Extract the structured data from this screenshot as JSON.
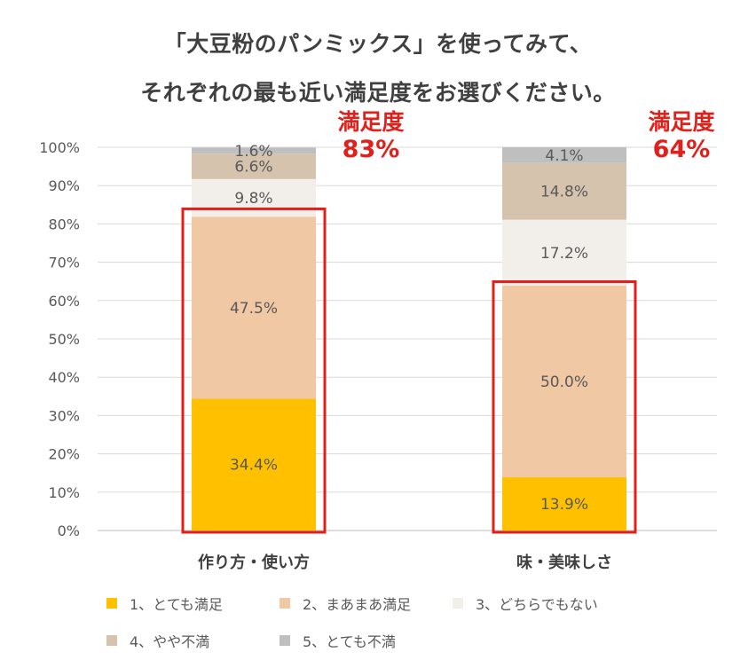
{
  "title_line1": "「大豆粉のパンミックス」を使ってみて、",
  "title_line2": "それぞれの最も近い満足度をお選びください。",
  "satisfaction": [
    {
      "label": "満足度",
      "value": "83%"
    },
    {
      "label": "満足度",
      "value": "64%"
    }
  ],
  "colors": {
    "highlight": "#e0201b",
    "grid": "#d9d9d9"
  },
  "chart_data": {
    "type": "bar",
    "stacked": true,
    "title": "「大豆粉のパンミックス」を使ってみて、それぞれの最も近い満足度をお選びください。",
    "categories": [
      "作り方・使い方",
      "味・美味しさ"
    ],
    "ylim": [
      0,
      100
    ],
    "yticks": [
      "0%",
      "10%",
      "20%",
      "30%",
      "40%",
      "50%",
      "60%",
      "70%",
      "80%",
      "90%",
      "100%"
    ],
    "series": [
      {
        "name": "1、とても満足",
        "color": "#ffc000",
        "values": [
          34.4,
          13.9
        ],
        "labels": [
          "34.4%",
          "13.9%"
        ]
      },
      {
        "name": "2、まあまあ満足",
        "color": "#f0c8a4",
        "values": [
          47.5,
          50.0
        ],
        "labels": [
          "47.5%",
          "50.0%"
        ]
      },
      {
        "name": "3、どちらでもない",
        "color": "#f2efea",
        "values": [
          9.8,
          17.2
        ],
        "labels": [
          "9.8%",
          "17.2%"
        ]
      },
      {
        "name": "4、やや不満",
        "color": "#d6c3ae",
        "values": [
          6.6,
          14.8
        ],
        "labels": [
          "6.6%",
          "14.8%"
        ]
      },
      {
        "name": "5、とても不満",
        "color": "#bfbfbf",
        "values": [
          1.6,
          4.1
        ],
        "labels": [
          "1.6%",
          "4.1%"
        ]
      }
    ],
    "highlight_totals": [
      83,
      64
    ]
  }
}
